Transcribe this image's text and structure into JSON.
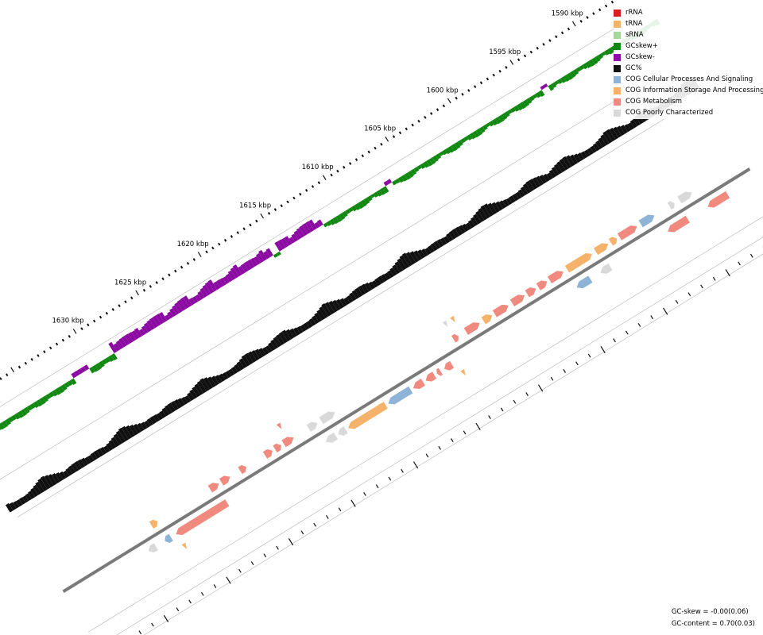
{
  "map": {
    "start_kbp": 1588,
    "end_kbp": 1632,
    "tick_labels": [
      {
        "kbp": 1590,
        "label": "1590 kbp"
      },
      {
        "kbp": 1595,
        "label": "1595 kbp"
      },
      {
        "kbp": 1600,
        "label": "1600 kbp"
      },
      {
        "kbp": 1605,
        "label": "1605 kbp"
      },
      {
        "kbp": 1610,
        "label": "1610 kbp"
      },
      {
        "kbp": 1615,
        "label": "1615 kbp"
      },
      {
        "kbp": 1620,
        "label": "1620 kbp"
      },
      {
        "kbp": 1625,
        "label": "1625 kbp"
      },
      {
        "kbp": 1630,
        "label": "1630 kbp"
      }
    ],
    "colors": {
      "gc_skew_pos": "#118811",
      "gc_skew_neg": "#8b0aa1",
      "gc_content": "#111111",
      "backbone": "#7a7a7a",
      "track_line": "#bdbdbd",
      "tick": "#111111"
    }
  },
  "legend": {
    "items": [
      {
        "label": "rRNA",
        "color": "#d62020"
      },
      {
        "label": "tRNA",
        "color": "#f5b26b"
      },
      {
        "label": "sRNA",
        "color": "#a5d89b"
      },
      {
        "label": "GCskew+",
        "color": "#118811"
      },
      {
        "label": "GCskew-",
        "color": "#8b0aa1"
      },
      {
        "label": "GC%",
        "color": "#111111"
      },
      {
        "label": "COG Cellular Processes And Signaling",
        "color": "#8db3d6"
      },
      {
        "label": "COG Information Storage And Processing",
        "color": "#f5b26b"
      },
      {
        "label": "COG Metabolism",
        "color": "#f08a7e"
      },
      {
        "label": "COG Poorly Characterized",
        "color": "#d9d9d9"
      }
    ]
  },
  "stats": {
    "gc_skew": "GC-skew = -0.00(0.06)",
    "gc_content": "GC-content = 0.70(0.03)"
  },
  "features": {
    "forward": [
      {
        "start": 1589.2,
        "end": 1590.2,
        "cog": "poorly"
      },
      {
        "start": 1590.6,
        "end": 1591.0,
        "cog": "poorly"
      },
      {
        "start": 1592.2,
        "end": 1593.3,
        "cog": "cellular"
      },
      {
        "start": 1593.6,
        "end": 1595.0,
        "cog": "metabolism"
      },
      {
        "start": 1595.2,
        "end": 1595.7,
        "cog": "info"
      },
      {
        "start": 1595.9,
        "end": 1596.9,
        "cog": "info"
      },
      {
        "start": 1597.2,
        "end": 1599.2,
        "cog": "info"
      },
      {
        "start": 1599.5,
        "end": 1600.6,
        "cog": "metabolism"
      },
      {
        "start": 1600.8,
        "end": 1601.5,
        "cog": "metabolism"
      },
      {
        "start": 1601.7,
        "end": 1602.4,
        "cog": "metabolism"
      },
      {
        "start": 1602.6,
        "end": 1603.6,
        "cog": "metabolism"
      },
      {
        "start": 1603.9,
        "end": 1605.0,
        "cog": "metabolism"
      },
      {
        "start": 1605.2,
        "end": 1605.9,
        "cog": "info"
      },
      {
        "start": 1606.2,
        "end": 1607.3,
        "cog": "metabolism"
      },
      {
        "start": 1607.9,
        "end": 1608.3,
        "cog": "metabolism"
      },
      {
        "start": 1617.8,
        "end": 1618.9,
        "cog": "poorly"
      },
      {
        "start": 1619.2,
        "end": 1619.9,
        "cog": "poorly"
      },
      {
        "start": 1621.1,
        "end": 1621.9,
        "cog": "metabolism"
      },
      {
        "start": 1622.1,
        "end": 1622.6,
        "cog": "metabolism"
      },
      {
        "start": 1622.8,
        "end": 1623.4,
        "cog": "metabolism"
      },
      {
        "start": 1624.9,
        "end": 1625.4,
        "cog": "metabolism"
      },
      {
        "start": 1626.2,
        "end": 1626.9,
        "cog": "metabolism"
      },
      {
        "start": 1627.1,
        "end": 1627.8,
        "cog": "metabolism"
      },
      {
        "start": 1632.0,
        "end": 1632.5,
        "cog": "info"
      }
    ],
    "reverse": [
      {
        "start": 1587.2,
        "end": 1588.8,
        "cog": "metabolism"
      },
      {
        "start": 1590.4,
        "end": 1592.0,
        "cog": "metabolism"
      },
      {
        "start": 1596.6,
        "end": 1597.4,
        "cog": "poorly"
      },
      {
        "start": 1598.2,
        "end": 1599.3,
        "cog": "cellular"
      },
      {
        "start": 1609.3,
        "end": 1609.9,
        "cog": "metabolism"
      },
      {
        "start": 1610.2,
        "end": 1610.5,
        "cog": "metabolism"
      },
      {
        "start": 1610.7,
        "end": 1611.4,
        "cog": "metabolism"
      },
      {
        "start": 1611.6,
        "end": 1612.4,
        "cog": "metabolism"
      },
      {
        "start": 1612.6,
        "end": 1614.4,
        "cog": "cellular"
      },
      {
        "start": 1614.6,
        "end": 1617.6,
        "cog": "info"
      },
      {
        "start": 1617.8,
        "end": 1618.4,
        "cog": "poorly"
      },
      {
        "start": 1618.6,
        "end": 1619.4,
        "cog": "poorly"
      },
      {
        "start": 1627.3,
        "end": 1631.4,
        "cog": "metabolism"
      },
      {
        "start": 1631.8,
        "end": 1632.3,
        "cog": "cellular"
      },
      {
        "start": 1633.0,
        "end": 1633.6,
        "cog": "poorly"
      }
    ],
    "rna": [
      {
        "pos": 1607.6,
        "type": "tRNA",
        "track": "outer"
      },
      {
        "pos": 1608.2,
        "type": "poorly",
        "track": "outer"
      },
      {
        "pos": 1621.5,
        "type": "metabolism",
        "track": "outer"
      },
      {
        "pos": 1631.3,
        "type": "tRNA",
        "track": "inner"
      },
      {
        "pos": 1608.9,
        "type": "tRNA",
        "track": "innerlow"
      }
    ]
  }
}
